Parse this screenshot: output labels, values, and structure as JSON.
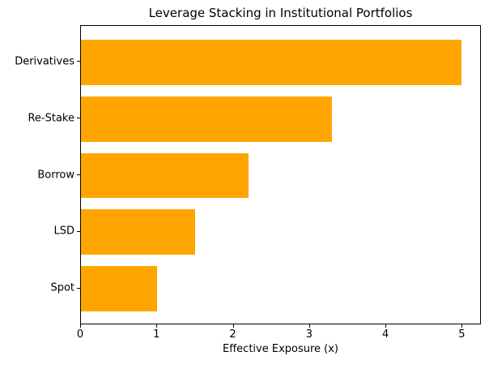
{
  "chart_data": {
    "type": "bar",
    "orientation": "horizontal",
    "title": "Leverage Stacking in Institutional Portfolios",
    "xlabel": "Effective Exposure (x)",
    "ylabel": "",
    "categories": [
      "Derivatives",
      "Re-Stake",
      "Borrow",
      "LSD",
      "Spot"
    ],
    "values": [
      5.0,
      3.3,
      2.2,
      1.5,
      1.0
    ],
    "x_ticks": [
      0,
      1,
      2,
      3,
      4,
      5
    ],
    "xlim": [
      0,
      5.25
    ],
    "bar_color": "#FFA500",
    "frame_color": "#000000",
    "grid": false,
    "legend": null
  }
}
